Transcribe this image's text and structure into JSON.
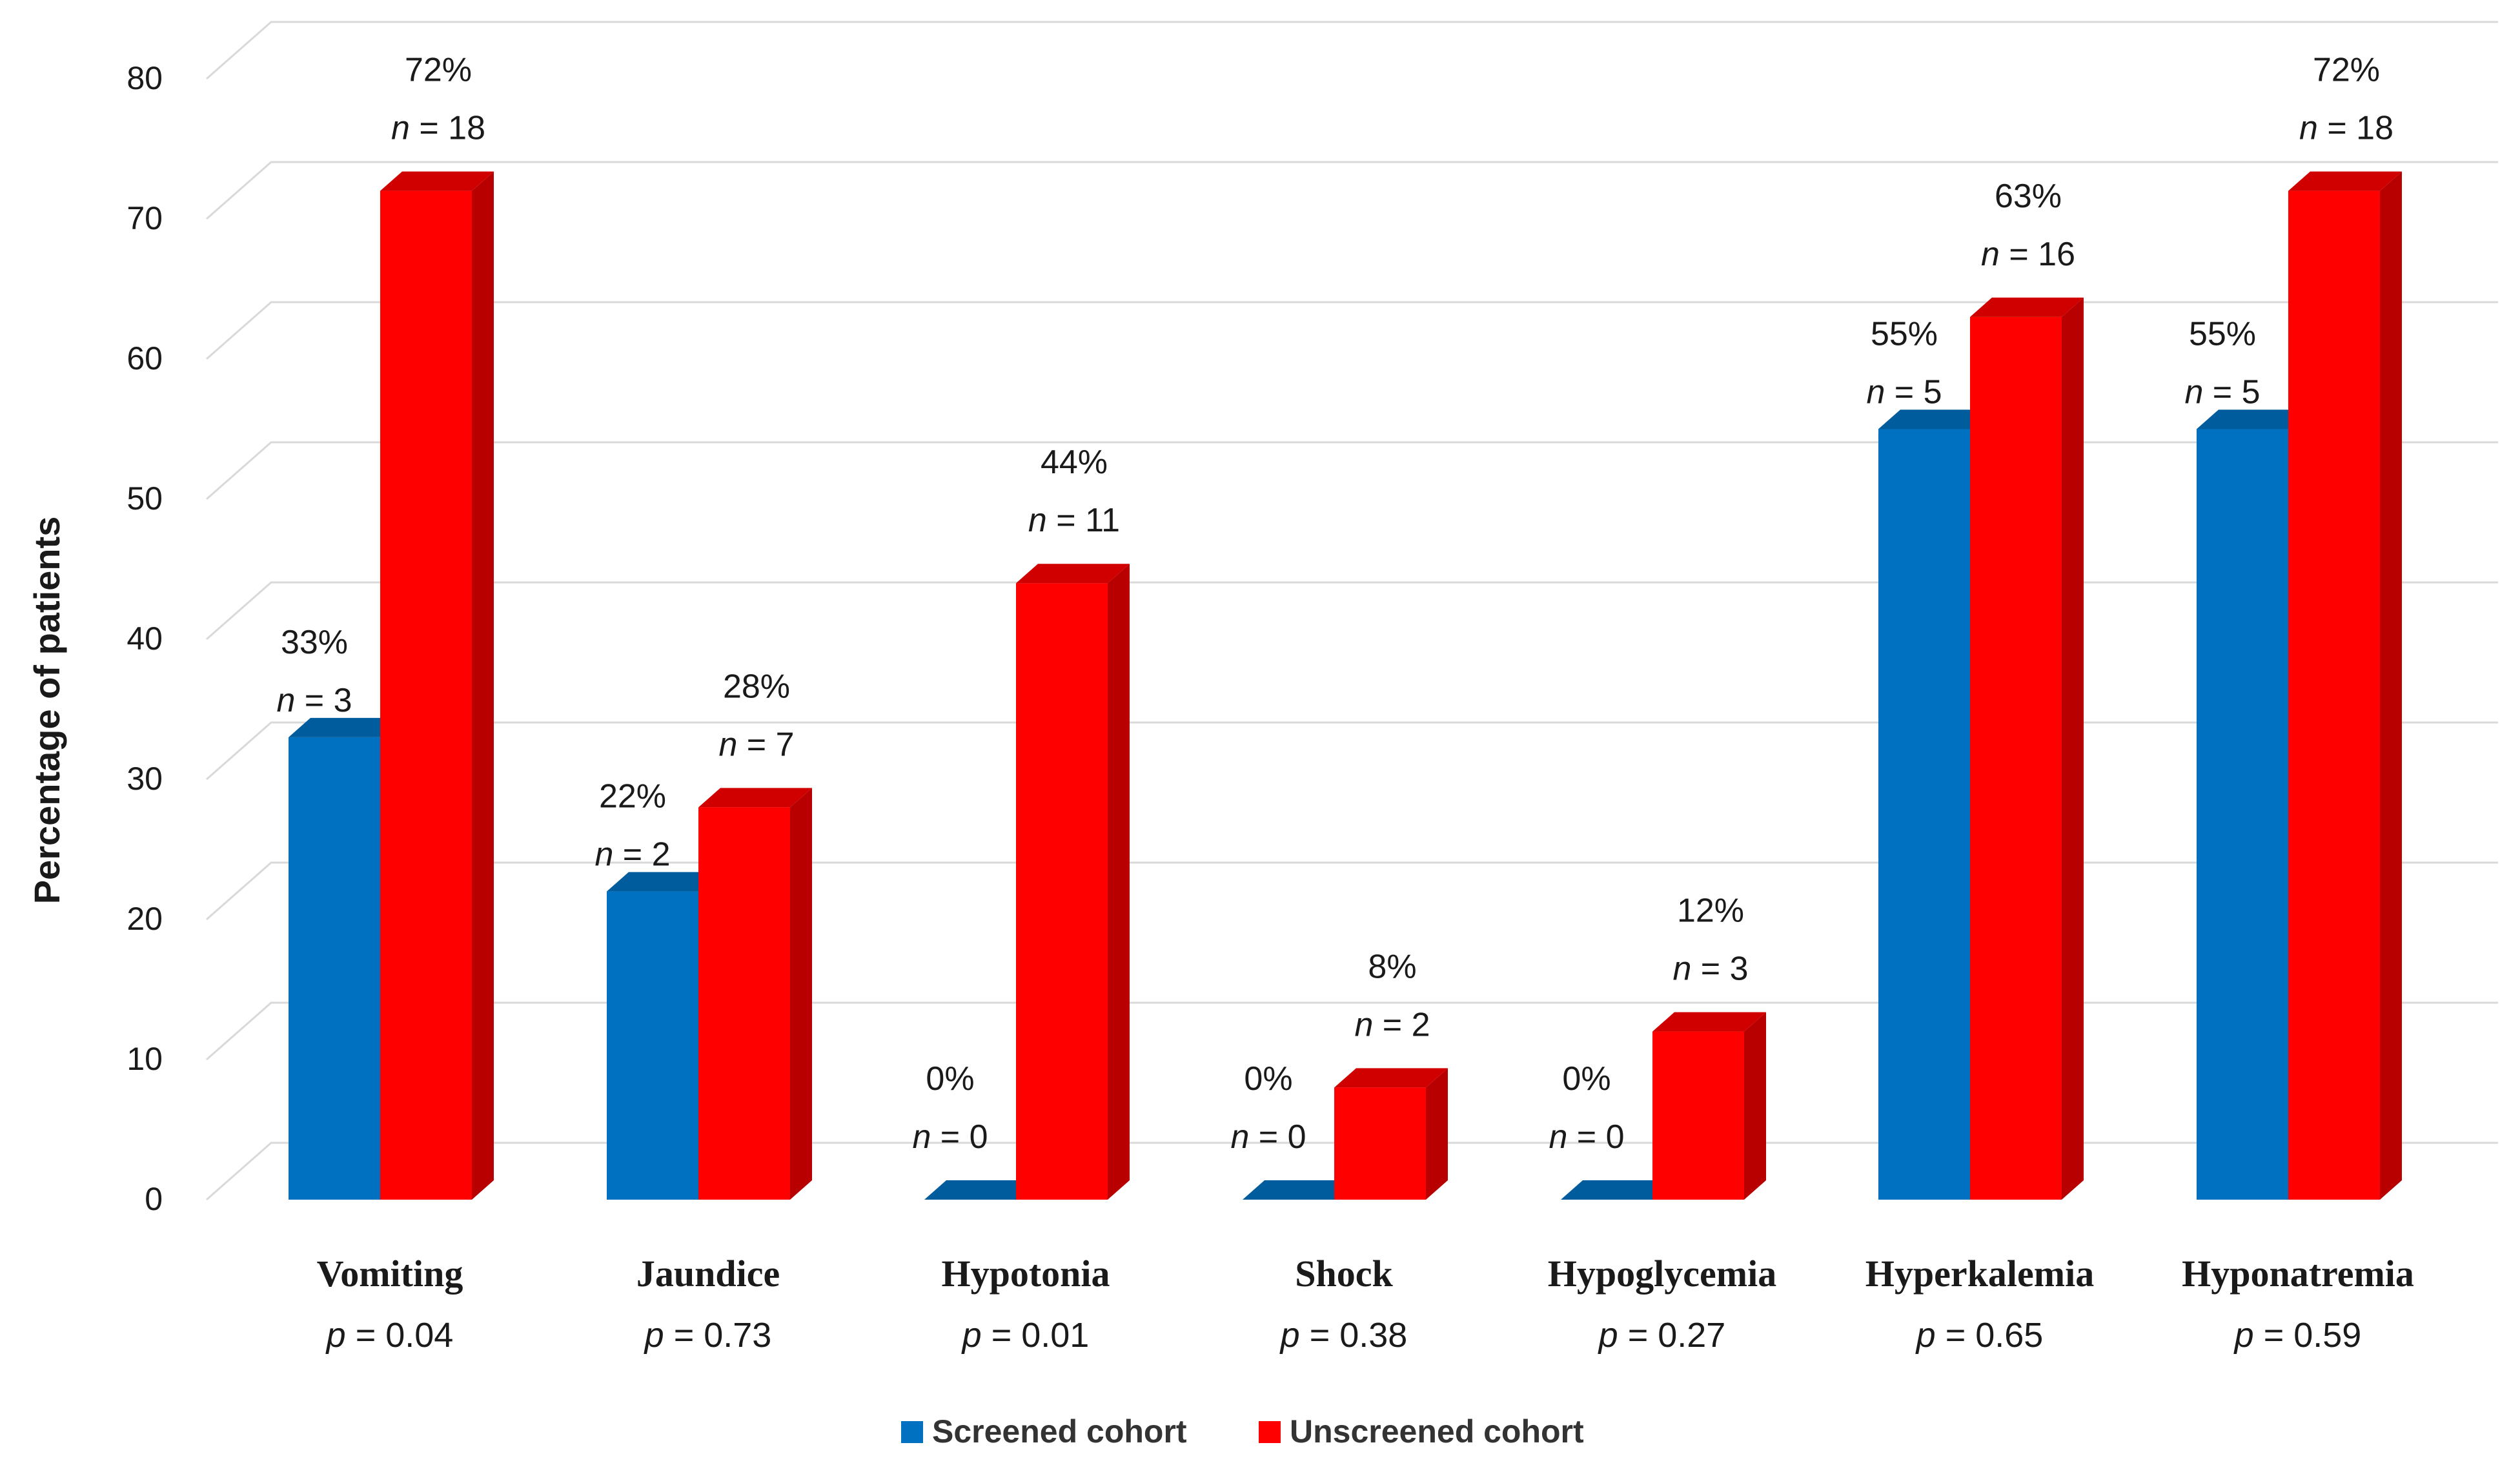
{
  "chart_data": {
    "type": "bar",
    "style": "3d-clustered-column",
    "ylabel": "Percentage of patients",
    "xlabel": "",
    "ylim": [
      0,
      80
    ],
    "yticks": [
      "0",
      "10",
      "20",
      "30",
      "40",
      "50",
      "60",
      "70",
      "80"
    ],
    "grid": true,
    "legend_position": "bottom-center",
    "categories": [
      "Vomiting",
      "Jaundice",
      "Hypotonia",
      "Shock",
      "Hypoglycemia",
      "Hyperkalemia",
      "Hyponatremia"
    ],
    "p_values": [
      "0.04",
      "0.73",
      "0.01",
      "0.38",
      "0.27",
      "0.65",
      "0.59"
    ],
    "p_prefix": "p",
    "n_prefix": "n",
    "series": [
      {
        "name": "Screened cohort",
        "color": "#0070c0",
        "values": [
          33,
          22,
          0,
          0,
          0,
          55,
          55
        ],
        "pct_labels": [
          "33%",
          "22%",
          "0%",
          "0%",
          "0%",
          "55%",
          "55%"
        ],
        "n_labels": [
          "3",
          "2",
          "0",
          "0",
          "0",
          "5",
          "5"
        ]
      },
      {
        "name": "Unscreened cohort",
        "color": "#ff0000",
        "values": [
          72,
          28,
          44,
          8,
          12,
          63,
          72
        ],
        "pct_labels": [
          "72%",
          "28%",
          "44%",
          "8%",
          "12%",
          "63%",
          "72%"
        ],
        "n_labels": [
          "18",
          "7",
          "11",
          "2",
          "3",
          "16",
          "18"
        ]
      }
    ]
  }
}
